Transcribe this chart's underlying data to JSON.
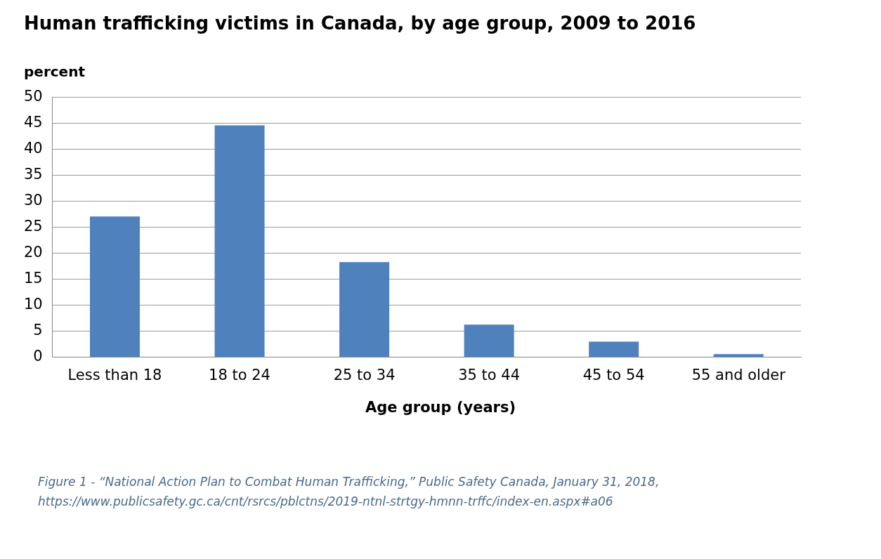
{
  "chart_data": {
    "type": "bar",
    "title": "Human trafficking victims in Canada, by age group, 2009 to 2016",
    "ylabel": "percent",
    "xlabel": "Age group (years)",
    "categories": [
      "Less than 18",
      "18 to 24",
      "25 to 34",
      "35 to 44",
      "45 to 54",
      "55 and older"
    ],
    "values": [
      27.1,
      44.6,
      18.3,
      6.3,
      3.0,
      0.6
    ],
    "color": "#4f81bd",
    "ylim": [
      0,
      50
    ],
    "yticks": [
      0,
      5,
      10,
      15,
      20,
      25,
      30,
      35,
      40,
      45,
      50
    ],
    "grid": "y",
    "annotations": [
      "Figure 1 - “National Action Plan to Combat Human Trafficking,” Public Safety Canada, January 31, 2018, https://www.publicsafety.gc.ca/cnt/rsrcs/pblctns/2019-ntnl-strtgy-hmnn-trffc/index-en.aspx#a06"
    ]
  }
}
